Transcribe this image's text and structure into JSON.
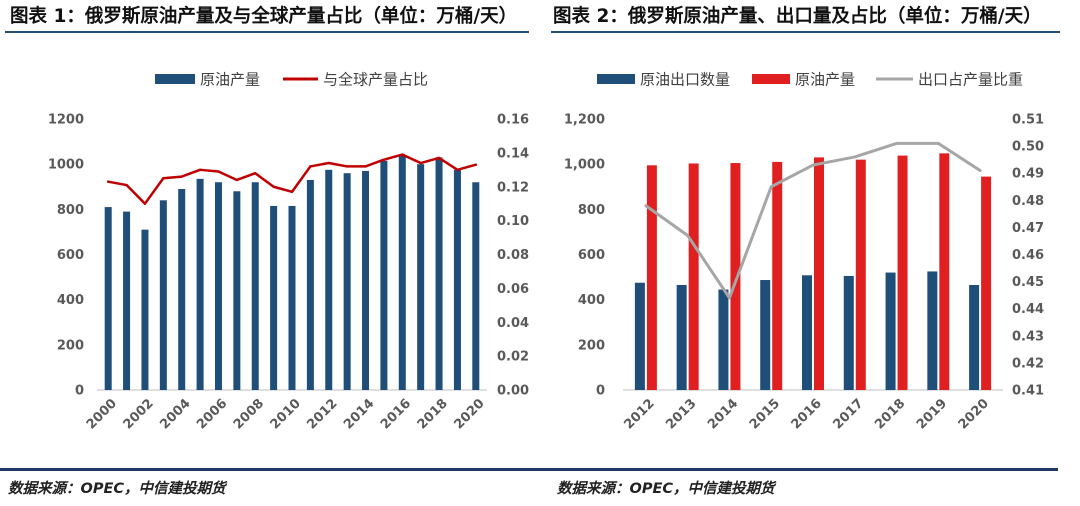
{
  "chart_data": [
    {
      "type": "bar",
      "title": "图表 1：俄罗斯原油产量及与全球产量占比（单位：万桶/天）",
      "source": "数据来源：OPEC，中信建投期货",
      "x": [
        2000,
        2001,
        2002,
        2003,
        2004,
        2005,
        2006,
        2007,
        2008,
        2009,
        2010,
        2011,
        2012,
        2013,
        2014,
        2015,
        2016,
        2017,
        2018,
        2019,
        2020
      ],
      "x_tick_labels": [
        "2000",
        "2002",
        "2004",
        "2006",
        "2008",
        "2010",
        "2012",
        "2014",
        "2016",
        "2018",
        "2020"
      ],
      "y_left": {
        "lim": [
          0,
          1200
        ],
        "tick_labels": [
          "0",
          "200",
          "400",
          "600",
          "800",
          "1000",
          "1200"
        ]
      },
      "y_right": {
        "lim": [
          0,
          0.16
        ],
        "tick_labels": [
          "0.00",
          "0.02",
          "0.04",
          "0.06",
          "0.08",
          "0.10",
          "0.12",
          "0.14",
          "0.16"
        ]
      },
      "series": [
        {
          "name": "原油产量",
          "type": "bar",
          "color": "#1f4e79",
          "values": [
            810,
            790,
            710,
            840,
            890,
            935,
            920,
            880,
            920,
            815,
            815,
            930,
            975,
            960,
            970,
            1015,
            1040,
            1000,
            1030,
            975,
            920
          ]
        },
        {
          "name": "与全球产量占比",
          "type": "line",
          "color": "#c00000",
          "values": [
            0.123,
            0.121,
            0.11,
            0.125,
            0.126,
            0.13,
            0.129,
            0.124,
            0.128,
            0.12,
            0.117,
            0.132,
            0.134,
            0.132,
            0.132,
            0.136,
            0.139,
            0.134,
            0.137,
            0.13,
            0.133
          ]
        }
      ],
      "legend": "top-center",
      "grid": false
    },
    {
      "type": "bar",
      "title": "图表 2：俄罗斯原油产量、出口量及占比（单位：万桶/天）",
      "source": "数据来源：OPEC，中信建投期货",
      "categories": [
        "2012",
        "2013",
        "2014",
        "2015",
        "2016",
        "2017",
        "2018",
        "2019",
        "2020"
      ],
      "y_left": {
        "lim": [
          0,
          1200
        ],
        "tick_labels": [
          "0",
          "200",
          "400",
          "600",
          "800",
          "1,000",
          "1,200"
        ]
      },
      "y_right": {
        "lim": [
          0.41,
          0.51
        ],
        "tick_labels": [
          "0.41",
          "0.42",
          "0.43",
          "0.44",
          "0.45",
          "0.46",
          "0.47",
          "0.48",
          "0.49",
          "0.50",
          "0.51"
        ]
      },
      "series": [
        {
          "name": "原油出口数量",
          "type": "bar",
          "color": "#1f4e79",
          "values": [
            475,
            465,
            445,
            487,
            508,
            505,
            520,
            525,
            465
          ]
        },
        {
          "name": "原油产量",
          "type": "bar",
          "color": "#e02020",
          "values": [
            995,
            1003,
            1005,
            1010,
            1030,
            1020,
            1038,
            1048,
            945
          ]
        },
        {
          "name": "出口占产量比重",
          "type": "line",
          "color": "#a6a6a6",
          "values": [
            0.478,
            0.467,
            0.444,
            0.485,
            0.493,
            0.496,
            0.501,
            0.501,
            0.491
          ]
        }
      ],
      "legend": "top-center",
      "grid": false
    }
  ]
}
